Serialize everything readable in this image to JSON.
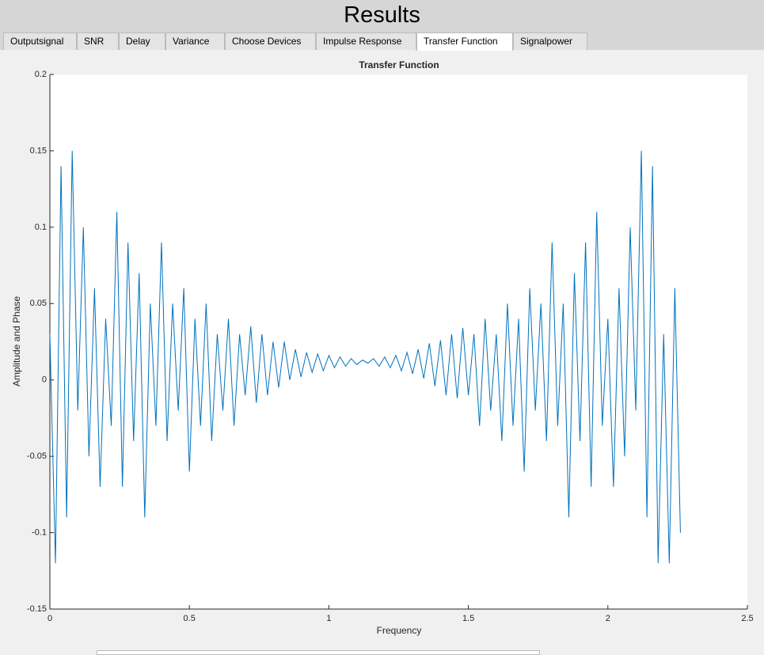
{
  "window_title": "Results",
  "tabs": [
    "Outputsignal",
    "SNR",
    "Delay",
    "Variance",
    "Choose Devices",
    "Impulse Response",
    "Transfer Function",
    "Signalpower"
  ],
  "chart_data": {
    "type": "line",
    "title": "Transfer Function",
    "xlabel": "Frequency",
    "ylabel": "Amplitude and Phase",
    "xlim": [
      0,
      2.5
    ],
    "xticks": [
      0,
      0.5,
      1,
      1.5,
      2,
      2.5
    ],
    "ylim": [
      -0.15,
      0.2
    ],
    "yticks": [
      -0.15,
      -0.1,
      -0.05,
      0,
      0.05,
      0.1,
      0.15,
      0.2
    ],
    "x": [
      0,
      0.02,
      0.04,
      0.06,
      0.08,
      0.1,
      0.12,
      0.14,
      0.16,
      0.18,
      0.2,
      0.22,
      0.24,
      0.26,
      0.28,
      0.3,
      0.32,
      0.34,
      0.36,
      0.38,
      0.4,
      0.42,
      0.44,
      0.46,
      0.48,
      0.5,
      0.52,
      0.54,
      0.56,
      0.58,
      0.6,
      0.62,
      0.64,
      0.66,
      0.68,
      0.7,
      0.72,
      0.74,
      0.76,
      0.78,
      0.8,
      0.82,
      0.84,
      0.86,
      0.88,
      0.9,
      0.92,
      0.94,
      0.96,
      0.98,
      1,
      1.02,
      1.04,
      1.06,
      1.08,
      1.1,
      1.12,
      1.14,
      1.16,
      1.18,
      1.2,
      1.22,
      1.24,
      1.26,
      1.28,
      1.3,
      1.32,
      1.34,
      1.36,
      1.38,
      1.4,
      1.42,
      1.44,
      1.46,
      1.48,
      1.5,
      1.52,
      1.54,
      1.56,
      1.58,
      1.6,
      1.62,
      1.64,
      1.66,
      1.68,
      1.7,
      1.72,
      1.74,
      1.76,
      1.78,
      1.8,
      1.82,
      1.84,
      1.86,
      1.88,
      1.9,
      1.92,
      1.94,
      1.96,
      1.98,
      2,
      2.02,
      2.04,
      2.06,
      2.08,
      2.1,
      2.12,
      2.14,
      2.16,
      2.18,
      2.2,
      2.22,
      2.24,
      2.26
    ],
    "series": [
      {
        "color": "#0072bd",
        "values": [
          0.03,
          -0.12,
          0.14,
          -0.09,
          0.15,
          -0.02,
          0.1,
          -0.05,
          0.06,
          -0.07,
          0.04,
          -0.03,
          0.11,
          -0.07,
          0.09,
          -0.04,
          0.07,
          -0.09,
          0.05,
          -0.03,
          0.09,
          -0.04,
          0.05,
          -0.02,
          0.06,
          -0.06,
          0.04,
          -0.03,
          0.05,
          -0.04,
          0.03,
          -0.02,
          0.04,
          -0.03,
          0.03,
          -0.01,
          0.035,
          -0.015,
          0.03,
          -0.01,
          0.025,
          -0.005,
          0.025,
          0,
          0.02,
          0.002,
          0.018,
          0.005,
          0.017,
          0.006,
          0.016,
          0.008,
          0.015,
          0.009,
          0.014,
          0.01,
          0.013,
          0.011,
          0.014,
          0.009,
          0.015,
          0.008,
          0.016,
          0.006,
          0.018,
          0.004,
          0.02,
          0.001,
          0.024,
          -0.004,
          0.026,
          -0.01,
          0.03,
          -0.012,
          0.034,
          -0.01,
          0.03,
          -0.03,
          0.04,
          -0.02,
          0.03,
          -0.04,
          0.05,
          -0.03,
          0.04,
          -0.06,
          0.06,
          -0.02,
          0.05,
          -0.04,
          0.09,
          -0.03,
          0.05,
          -0.09,
          0.07,
          -0.04,
          0.09,
          -0.07,
          0.11,
          -0.03,
          0.04,
          -0.07,
          0.06,
          -0.05,
          0.1,
          -0.02,
          0.15,
          -0.09,
          0.14,
          -0.12,
          0.03,
          -0.12,
          0.06,
          -0.1
        ]
      }
    ]
  }
}
